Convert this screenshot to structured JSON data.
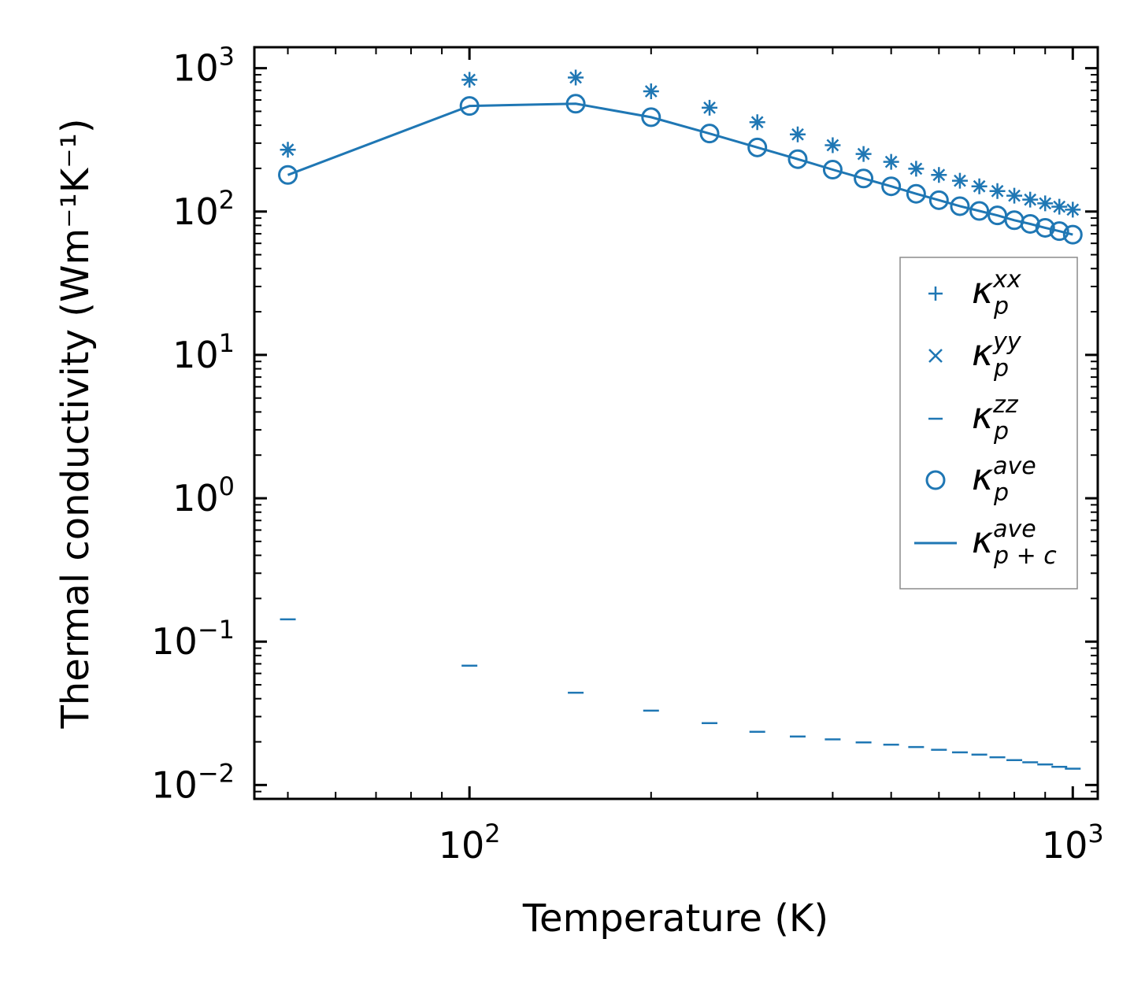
{
  "chart_data": {
    "type": "scatter",
    "xscale": "log",
    "yscale": "log",
    "xlim": [
      44,
      1100
    ],
    "ylim": [
      0.008,
      1400
    ],
    "xlabel": "Temperature (K)",
    "ylabel": "Thermal conductivity (Wm⁻¹K⁻¹)",
    "x_tick_labels": [
      {
        "value": 100,
        "base": "10",
        "exp": "2"
      },
      {
        "value": 1000,
        "base": "10",
        "exp": "3"
      }
    ],
    "y_tick_labels": [
      {
        "value": 1000,
        "base": "10",
        "exp": "3"
      },
      {
        "value": 100,
        "base": "10",
        "exp": "2"
      },
      {
        "value": 10,
        "base": "10",
        "exp": "1"
      },
      {
        "value": 1,
        "base": "10",
        "exp": "0"
      },
      {
        "value": 0.1,
        "base": "10",
        "exp": "−1"
      },
      {
        "value": 0.01,
        "base": "10",
        "exp": "−2"
      }
    ],
    "color": "#1f77b4",
    "x": [
      50,
      100,
      150,
      200,
      250,
      300,
      350,
      400,
      450,
      500,
      550,
      600,
      650,
      700,
      750,
      800,
      850,
      900,
      950,
      1000
    ],
    "series": [
      {
        "name": "κ_p^xx",
        "label_main": "κ",
        "label_sub": "p",
        "label_sup": "xx",
        "marker": "plus",
        "values": [
          270,
          830,
          860,
          690,
          530,
          420,
          345,
          290,
          252,
          222,
          199,
          180,
          164,
          150,
          139,
          129,
          121,
          114,
          108,
          103
        ]
      },
      {
        "name": "κ_p^yy",
        "label_main": "κ",
        "label_sub": "p",
        "label_sup": "yy",
        "marker": "x",
        "values": [
          270,
          830,
          860,
          690,
          530,
          420,
          345,
          290,
          252,
          222,
          199,
          180,
          164,
          150,
          139,
          129,
          121,
          114,
          108,
          103
        ]
      },
      {
        "name": "κ_p^zz",
        "label_main": "κ",
        "label_sub": "p",
        "label_sup": "zz",
        "marker": "hline",
        "values": [
          0.143,
          0.068,
          0.044,
          0.033,
          0.027,
          0.0235,
          0.0218,
          0.0208,
          0.0198,
          0.0191,
          0.0184,
          0.0176,
          0.0169,
          0.0163,
          0.0156,
          0.0149,
          0.0144,
          0.0139,
          0.0134,
          0.013
        ]
      },
      {
        "name": "κ_p^ave",
        "label_main": "κ",
        "label_sub": "p",
        "label_sup": "ave",
        "marker": "circle",
        "values": [
          180,
          545,
          565,
          455,
          350,
          280,
          232,
          196,
          170,
          150,
          133,
          120,
          109,
          101,
          94,
          87,
          82,
          77,
          73,
          69
        ]
      },
      {
        "name": "κ_p+c^ave",
        "label_main": "κ",
        "label_sub": "p + c",
        "label_sup": "ave",
        "marker": "line",
        "values": [
          180,
          545,
          565,
          455,
          350,
          280,
          232,
          196,
          170,
          150,
          133,
          120,
          109,
          101,
          94,
          87,
          82,
          77,
          73,
          69
        ]
      }
    ],
    "legend_position": "center-right"
  }
}
